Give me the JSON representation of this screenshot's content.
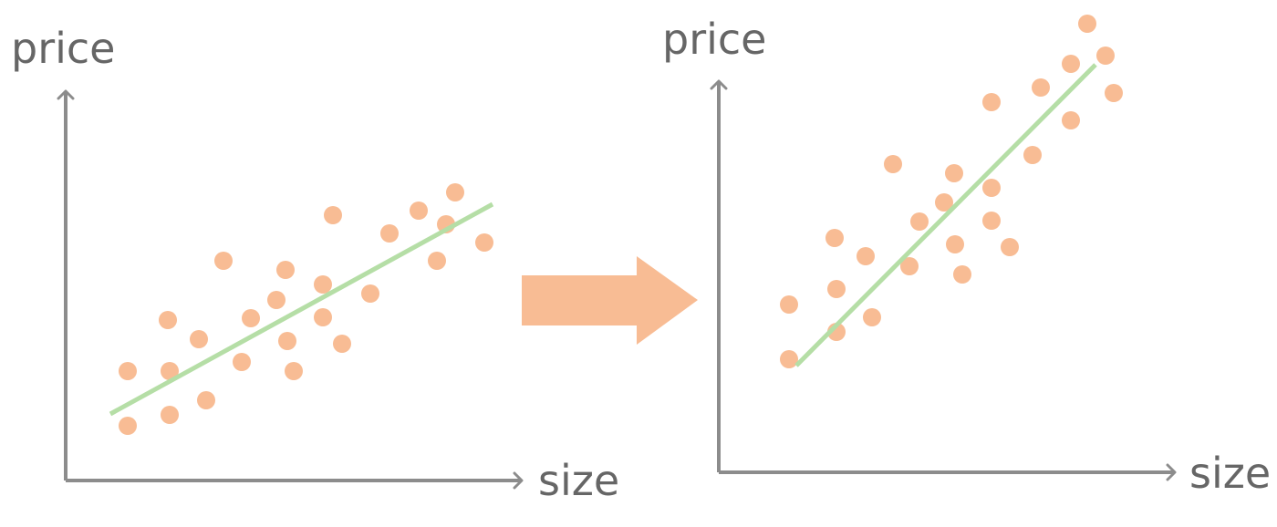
{
  "colors": {
    "axis": "#8c8c8c",
    "axis_label": "#666666",
    "points": "#f8bc94",
    "fit_line": "#b5dea6",
    "arrow": "#f8bc94"
  },
  "left_plot": {
    "y_label": "price",
    "x_label": "size"
  },
  "right_plot": {
    "y_label": "price",
    "x_label": "size"
  },
  "transition_arrow": {
    "icon": "right-arrow-icon"
  }
}
